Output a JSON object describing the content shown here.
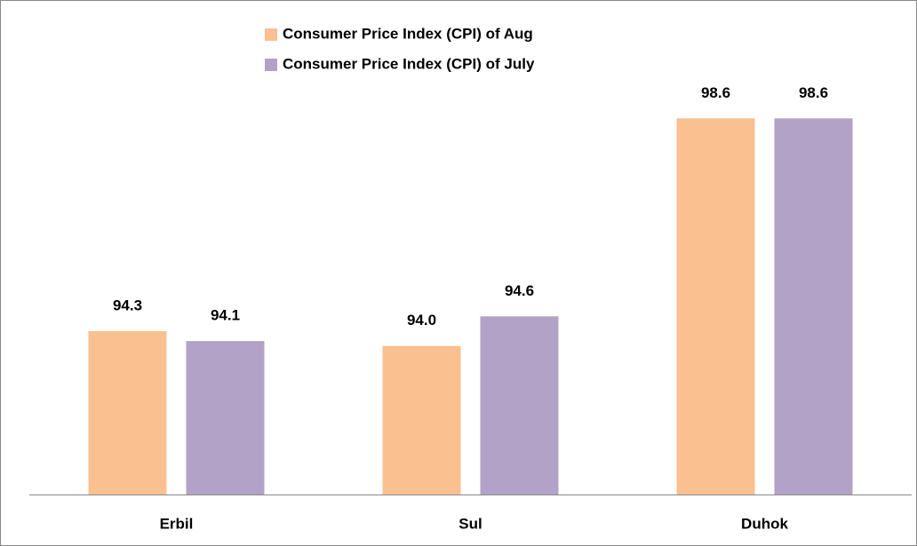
{
  "chart_data": {
    "type": "bar",
    "categories": [
      "Erbil",
      "Sul",
      "Duhok"
    ],
    "series": [
      {
        "name": "Consumer Price Index (CPI) of Aug",
        "color": "#fac090",
        "values": [
          94.3,
          94.0,
          98.6
        ],
        "value_labels": [
          "94.3",
          "94.0",
          "98.6"
        ]
      },
      {
        "name": "Consumer Price Index (CPI) of July",
        "color": "#b3a2c7",
        "values": [
          94.1,
          94.6,
          98.6
        ],
        "value_labels": [
          "94.1",
          "94.6",
          "98.6"
        ]
      }
    ],
    "ylim": [
      91,
      99
    ]
  }
}
